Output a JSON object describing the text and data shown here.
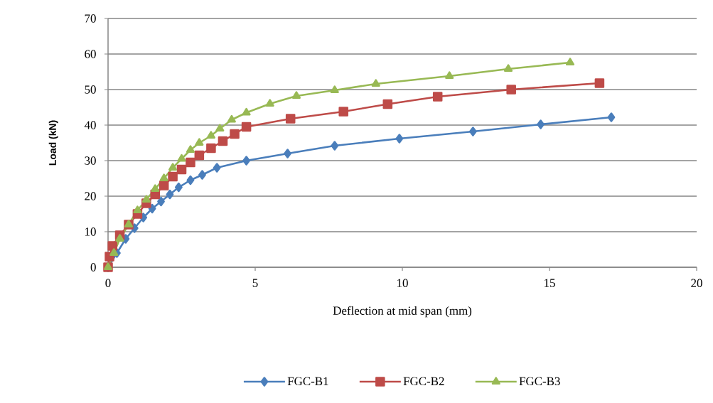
{
  "chart_data": {
    "type": "line",
    "xlabel": "Deflection at mid span (mm)",
    "ylabel": "Load (kN)",
    "xlim": [
      0,
      20
    ],
    "ylim": [
      0,
      70
    ],
    "xticks": [
      0,
      5,
      10,
      15,
      20
    ],
    "yticks": [
      0,
      10,
      20,
      30,
      40,
      50,
      60,
      70
    ],
    "grid": "y",
    "legend": "bottom",
    "line_style": "solid",
    "series": [
      {
        "name": "FGC-B1",
        "color": "#4a7ebb",
        "marker": "diamond",
        "x": [
          0,
          0.3,
          0.6,
          0.9,
          1.2,
          1.5,
          1.8,
          2.1,
          2.4,
          2.8,
          3.2,
          3.7,
          4.7,
          6.1,
          7.7,
          9.9,
          12.4,
          14.7,
          17.1
        ],
        "values": [
          0,
          4,
          8,
          11,
          14,
          16.5,
          18.5,
          20.5,
          22.5,
          24.5,
          26,
          28,
          30,
          32,
          34.2,
          36.2,
          38.2,
          40.2,
          42.2
        ]
      },
      {
        "name": "FGC-B2",
        "color": "#be4b48",
        "marker": "square",
        "x": [
          0,
          0.05,
          0.15,
          0.4,
          0.7,
          1.0,
          1.3,
          1.6,
          1.9,
          2.2,
          2.5,
          2.8,
          3.1,
          3.5,
          3.9,
          4.3,
          4.7,
          6.2,
          8.0,
          9.5,
          11.2,
          13.7,
          16.7
        ],
        "values": [
          0,
          3,
          6,
          9,
          12,
          15,
          18,
          20.5,
          23,
          25.5,
          27.5,
          29.5,
          31.5,
          33.5,
          35.5,
          37.5,
          39.5,
          41.8,
          43.8,
          45.9,
          48,
          50,
          51.8
        ]
      },
      {
        "name": "FGC-B3",
        "color": "#98b954",
        "marker": "triangle",
        "x": [
          0,
          0.2,
          0.4,
          0.7,
          1.0,
          1.3,
          1.6,
          1.9,
          2.2,
          2.5,
          2.8,
          3.1,
          3.5,
          3.8,
          4.2,
          4.7,
          5.5,
          6.4,
          7.7,
          9.1,
          11.6,
          13.6,
          15.7
        ],
        "values": [
          0,
          4,
          8,
          12,
          16,
          19,
          22,
          25,
          28,
          30.5,
          33,
          35,
          37,
          39,
          41.5,
          43.5,
          46,
          48.2,
          49.8,
          51.6,
          53.8,
          55.8,
          57.6
        ]
      }
    ]
  }
}
